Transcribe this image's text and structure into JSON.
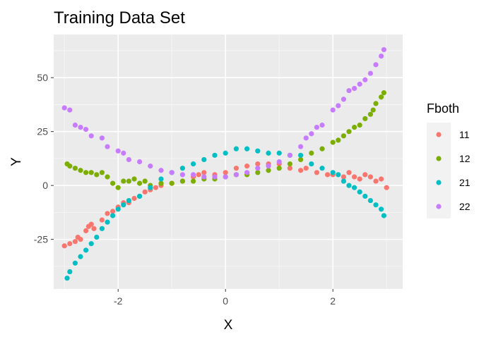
{
  "chart_data": {
    "type": "scatter",
    "title": "Training Data Set",
    "xlabel": "X",
    "ylabel": "Y",
    "xlim": [
      -3.2,
      3.3
    ],
    "ylim": [
      -48,
      70
    ],
    "xticks": [
      -2,
      0,
      2
    ],
    "xtick_labels": [
      "-2",
      "0",
      "2"
    ],
    "yticks": [
      -25,
      0,
      25,
      50
    ],
    "ytick_labels": [
      "-25",
      "0",
      "25",
      "50"
    ],
    "grid": true,
    "legend": {
      "title": "Fboth",
      "placement": "right"
    },
    "series": [
      {
        "name": "11",
        "color": "#F8766D",
        "points": [
          [
            -3,
            -28
          ],
          [
            -2.9,
            -27
          ],
          [
            -2.8,
            -26
          ],
          [
            -2.75,
            -24
          ],
          [
            -2.7,
            -25
          ],
          [
            -2.6,
            -21
          ],
          [
            -2.55,
            -19
          ],
          [
            -2.5,
            -18
          ],
          [
            -2.45,
            -20
          ],
          [
            -2.3,
            -16
          ],
          [
            -2.2,
            -13
          ],
          [
            -2.1,
            -12
          ],
          [
            -2.0,
            -10
          ],
          [
            -1.9,
            -8
          ],
          [
            -1.8,
            -8
          ],
          [
            -1.7,
            -6
          ],
          [
            -1.6,
            -5
          ],
          [
            -1.5,
            -3
          ],
          [
            -1.4,
            -2
          ],
          [
            -1.3,
            -1
          ],
          [
            -1.2,
            0
          ],
          [
            -1.0,
            1
          ],
          [
            -0.8,
            2
          ],
          [
            -0.6,
            4
          ],
          [
            -0.5,
            5
          ],
          [
            -0.4,
            6
          ],
          [
            -0.2,
            5
          ],
          [
            0,
            6
          ],
          [
            0.2,
            8
          ],
          [
            0.4,
            9
          ],
          [
            0.6,
            10
          ],
          [
            0.8,
            10
          ],
          [
            1.0,
            10
          ],
          [
            1.2,
            8
          ],
          [
            1.4,
            7
          ],
          [
            1.5,
            8
          ],
          [
            1.7,
            6
          ],
          [
            1.9,
            5
          ],
          [
            2.0,
            5
          ],
          [
            2.2,
            4
          ],
          [
            2.3,
            6
          ],
          [
            2.4,
            4
          ],
          [
            2.5,
            3
          ],
          [
            2.6,
            5
          ],
          [
            2.7,
            4
          ],
          [
            2.8,
            2
          ],
          [
            2.9,
            3
          ],
          [
            3.0,
            -1
          ]
        ]
      },
      {
        "name": "12",
        "color": "#7CAE00",
        "points": [
          [
            -2.95,
            10
          ],
          [
            -2.9,
            9
          ],
          [
            -2.8,
            8
          ],
          [
            -2.7,
            7
          ],
          [
            -2.6,
            6
          ],
          [
            -2.5,
            6
          ],
          [
            -2.4,
            5
          ],
          [
            -2.3,
            6
          ],
          [
            -2.2,
            4
          ],
          [
            -2.1,
            1
          ],
          [
            -2.0,
            -1
          ],
          [
            -1.9,
            2
          ],
          [
            -1.8,
            2
          ],
          [
            -1.7,
            3
          ],
          [
            -1.6,
            1
          ],
          [
            -1.5,
            2
          ],
          [
            -1.4,
            0
          ],
          [
            -1.2,
            1
          ],
          [
            -1.0,
            1
          ],
          [
            -0.8,
            2
          ],
          [
            -0.6,
            2
          ],
          [
            -0.4,
            3
          ],
          [
            -0.2,
            3
          ],
          [
            0,
            4
          ],
          [
            0.2,
            5
          ],
          [
            0.4,
            5
          ],
          [
            0.6,
            6
          ],
          [
            0.8,
            7
          ],
          [
            1.0,
            8
          ],
          [
            1.2,
            10
          ],
          [
            1.4,
            12
          ],
          [
            1.6,
            15
          ],
          [
            1.8,
            17
          ],
          [
            2.0,
            20
          ],
          [
            2.1,
            21
          ],
          [
            2.2,
            23
          ],
          [
            2.3,
            25
          ],
          [
            2.4,
            27
          ],
          [
            2.5,
            28
          ],
          [
            2.6,
            31
          ],
          [
            2.7,
            33
          ],
          [
            2.75,
            35
          ],
          [
            2.8,
            38
          ],
          [
            2.9,
            41
          ],
          [
            2.95,
            43
          ]
        ]
      },
      {
        "name": "21",
        "color": "#00BFC4",
        "points": [
          [
            -2.95,
            -43
          ],
          [
            -2.9,
            -40
          ],
          [
            -2.8,
            -36
          ],
          [
            -2.7,
            -33
          ],
          [
            -2.6,
            -30
          ],
          [
            -2.5,
            -27
          ],
          [
            -2.4,
            -24
          ],
          [
            -2.3,
            -20
          ],
          [
            -2.2,
            -17
          ],
          [
            -2.1,
            -14
          ],
          [
            -2.0,
            -11
          ],
          [
            -1.9,
            -9
          ],
          [
            -1.8,
            -7
          ],
          [
            -1.6,
            -5
          ],
          [
            -1.4,
            -1
          ],
          [
            -1.2,
            3
          ],
          [
            -1.0,
            6
          ],
          [
            -0.8,
            8
          ],
          [
            -0.6,
            10
          ],
          [
            -0.4,
            12
          ],
          [
            -0.2,
            14
          ],
          [
            0,
            15
          ],
          [
            0.2,
            17
          ],
          [
            0.4,
            17
          ],
          [
            0.6,
            16
          ],
          [
            0.8,
            15
          ],
          [
            1.0,
            15
          ],
          [
            1.2,
            14
          ],
          [
            1.4,
            14
          ],
          [
            1.6,
            10
          ],
          [
            1.8,
            8
          ],
          [
            2.0,
            6
          ],
          [
            2.1,
            5
          ],
          [
            2.2,
            2
          ],
          [
            2.3,
            0
          ],
          [
            2.4,
            -1
          ],
          [
            2.5,
            -3
          ],
          [
            2.6,
            -5
          ],
          [
            2.7,
            -7
          ],
          [
            2.8,
            -9
          ],
          [
            2.9,
            -11
          ],
          [
            2.95,
            -14
          ]
        ]
      },
      {
        "name": "22",
        "color": "#C77CFF",
        "points": [
          [
            -3.0,
            36
          ],
          [
            -2.9,
            35
          ],
          [
            -2.8,
            28
          ],
          [
            -2.7,
            27
          ],
          [
            -2.6,
            26
          ],
          [
            -2.5,
            23
          ],
          [
            -2.3,
            22
          ],
          [
            -2.2,
            18
          ],
          [
            -2.0,
            16
          ],
          [
            -1.9,
            15
          ],
          [
            -1.8,
            12
          ],
          [
            -1.6,
            11
          ],
          [
            -1.4,
            9
          ],
          [
            -1.2,
            7
          ],
          [
            -1.0,
            6
          ],
          [
            -0.8,
            5
          ],
          [
            -0.6,
            5
          ],
          [
            -0.4,
            4
          ],
          [
            -0.2,
            4
          ],
          [
            0,
            4
          ],
          [
            0.2,
            5
          ],
          [
            0.4,
            6
          ],
          [
            0.6,
            8
          ],
          [
            0.8,
            9
          ],
          [
            1.0,
            11
          ],
          [
            1.2,
            14
          ],
          [
            1.4,
            18
          ],
          [
            1.5,
            22
          ],
          [
            1.6,
            24
          ],
          [
            1.7,
            27
          ],
          [
            1.8,
            28
          ],
          [
            2.0,
            35
          ],
          [
            2.1,
            37
          ],
          [
            2.2,
            40
          ],
          [
            2.3,
            44
          ],
          [
            2.4,
            45
          ],
          [
            2.5,
            47
          ],
          [
            2.6,
            49
          ],
          [
            2.7,
            52
          ],
          [
            2.8,
            56
          ],
          [
            2.9,
            60
          ],
          [
            2.95,
            63
          ]
        ]
      }
    ]
  }
}
